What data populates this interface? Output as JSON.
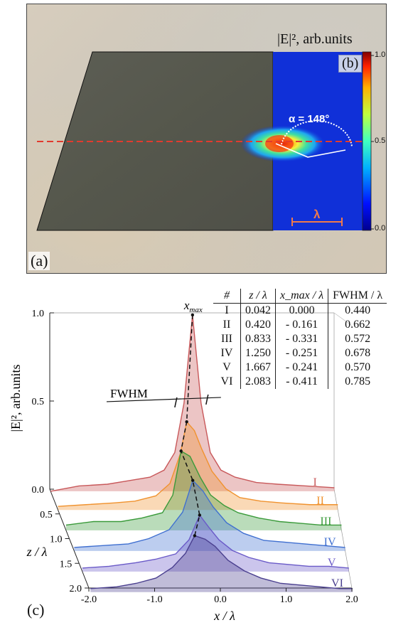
{
  "panel_a": {
    "label": "(a)"
  },
  "panel_b": {
    "label": "(b)",
    "colorbar_title": "|E|², arb.units",
    "colorbar_ticks": [
      "1.0",
      "0.5",
      "0.0"
    ],
    "angle_label": "α = 148°",
    "scale_label": "λ",
    "colors": {
      "dash_line": "#e23a2e",
      "map_background": "#1030d8",
      "scale_bar": "#f07a4a"
    }
  },
  "panel_c": {
    "label": "(c)",
    "xmax_label": "x_max",
    "fwhm_label": "FWHM",
    "table": {
      "headers": [
        "#",
        "z / λ",
        "x_max / λ",
        "FWHM / λ"
      ],
      "rows": [
        [
          "I",
          "0.042",
          "0.000",
          "0.440"
        ],
        [
          "II",
          "0.420",
          "- 0.161",
          "0.662"
        ],
        [
          "III",
          "0.833",
          "- 0.331",
          "0.572"
        ],
        [
          "IV",
          "1.250",
          "- 0.251",
          "0.678"
        ],
        [
          "V",
          "1.667",
          "- 0.241",
          "0.570"
        ],
        [
          "VI",
          "2.083",
          "- 0.411",
          "0.785"
        ]
      ]
    }
  },
  "chart_data": {
    "type": "line",
    "title": "",
    "xlabel": "x / λ",
    "ylabel": "|E|², arb.units",
    "zlabel": "z / λ",
    "x_ticks": [
      "-2.0",
      "-1.0",
      "0.0",
      "1.0",
      "2.0"
    ],
    "y_ticks": [
      "0.0",
      "0.5",
      "1.0"
    ],
    "z_ticks": [
      "0.5",
      "1.0",
      "1.5",
      "2.0"
    ],
    "xlim": [
      -2.0,
      2.0
    ],
    "ylim": [
      0.0,
      1.0
    ],
    "zlim": [
      0.0,
      2.0
    ],
    "series": [
      {
        "name": "I",
        "z": 0.042,
        "color": "#c8585a",
        "x": [
          -2.0,
          -1.6,
          -1.2,
          -0.9,
          -0.6,
          -0.4,
          -0.25,
          -0.12,
          0.0,
          0.12,
          0.25,
          0.4,
          0.6,
          0.9,
          1.2,
          1.6,
          2.0
        ],
        "y": [
          0.0,
          0.03,
          0.04,
          0.06,
          0.08,
          0.12,
          0.22,
          0.5,
          1.0,
          0.5,
          0.22,
          0.12,
          0.08,
          0.05,
          0.04,
          0.03,
          0.02
        ]
      },
      {
        "name": "II",
        "z": 0.42,
        "color": "#f0922e",
        "x": [
          -2.0,
          -1.6,
          -1.2,
          -0.9,
          -0.6,
          -0.4,
          -0.25,
          -0.16,
          -0.05,
          0.05,
          0.2,
          0.4,
          0.6,
          0.9,
          1.2,
          1.6,
          2.0
        ],
        "y": [
          0.02,
          0.03,
          0.04,
          0.05,
          0.08,
          0.15,
          0.32,
          0.5,
          0.45,
          0.35,
          0.22,
          0.12,
          0.07,
          0.05,
          0.04,
          0.03,
          0.03
        ]
      },
      {
        "name": "III",
        "z": 0.833,
        "color": "#3a9a3a",
        "x": [
          -2.0,
          -1.6,
          -1.2,
          -0.9,
          -0.6,
          -0.45,
          -0.33,
          -0.2,
          -0.05,
          0.1,
          0.3,
          0.5,
          0.8,
          1.1,
          1.4,
          1.7,
          2.0
        ],
        "y": [
          0.03,
          0.05,
          0.05,
          0.07,
          0.1,
          0.2,
          0.45,
          0.42,
          0.3,
          0.2,
          0.14,
          0.1,
          0.07,
          0.05,
          0.04,
          0.03,
          0.03
        ]
      },
      {
        "name": "IV",
        "z": 1.25,
        "color": "#3f6fd0",
        "x": [
          -2.0,
          -1.6,
          -1.2,
          -0.9,
          -0.6,
          -0.4,
          -0.25,
          -0.1,
          0.05,
          0.25,
          0.5,
          0.8,
          1.1,
          1.4,
          1.7,
          2.0
        ],
        "y": [
          0.02,
          0.03,
          0.04,
          0.07,
          0.12,
          0.22,
          0.4,
          0.34,
          0.25,
          0.16,
          0.1,
          0.06,
          0.05,
          0.04,
          0.03,
          0.02
        ]
      },
      {
        "name": "V",
        "z": 1.667,
        "color": "#6a5ac8",
        "x": [
          -2.0,
          -1.6,
          -1.2,
          -0.9,
          -0.6,
          -0.4,
          -0.24,
          -0.1,
          0.05,
          0.25,
          0.5,
          0.8,
          1.1,
          1.4,
          1.7,
          2.0
        ],
        "y": [
          0.02,
          0.03,
          0.05,
          0.07,
          0.1,
          0.18,
          0.32,
          0.25,
          0.18,
          0.12,
          0.08,
          0.05,
          0.04,
          0.03,
          0.03,
          0.02
        ]
      },
      {
        "name": "VI",
        "z": 2.083,
        "color": "#4a3f8f",
        "x": [
          -2.0,
          -1.6,
          -1.3,
          -1.0,
          -0.75,
          -0.55,
          -0.41,
          -0.25,
          -0.1,
          0.1,
          0.35,
          0.6,
          0.9,
          1.2,
          1.5,
          1.8,
          2.0
        ],
        "y": [
          0.02,
          0.03,
          0.05,
          0.08,
          0.14,
          0.22,
          0.32,
          0.3,
          0.26,
          0.18,
          0.12,
          0.08,
          0.05,
          0.04,
          0.03,
          0.02,
          0.02
        ]
      }
    ]
  }
}
